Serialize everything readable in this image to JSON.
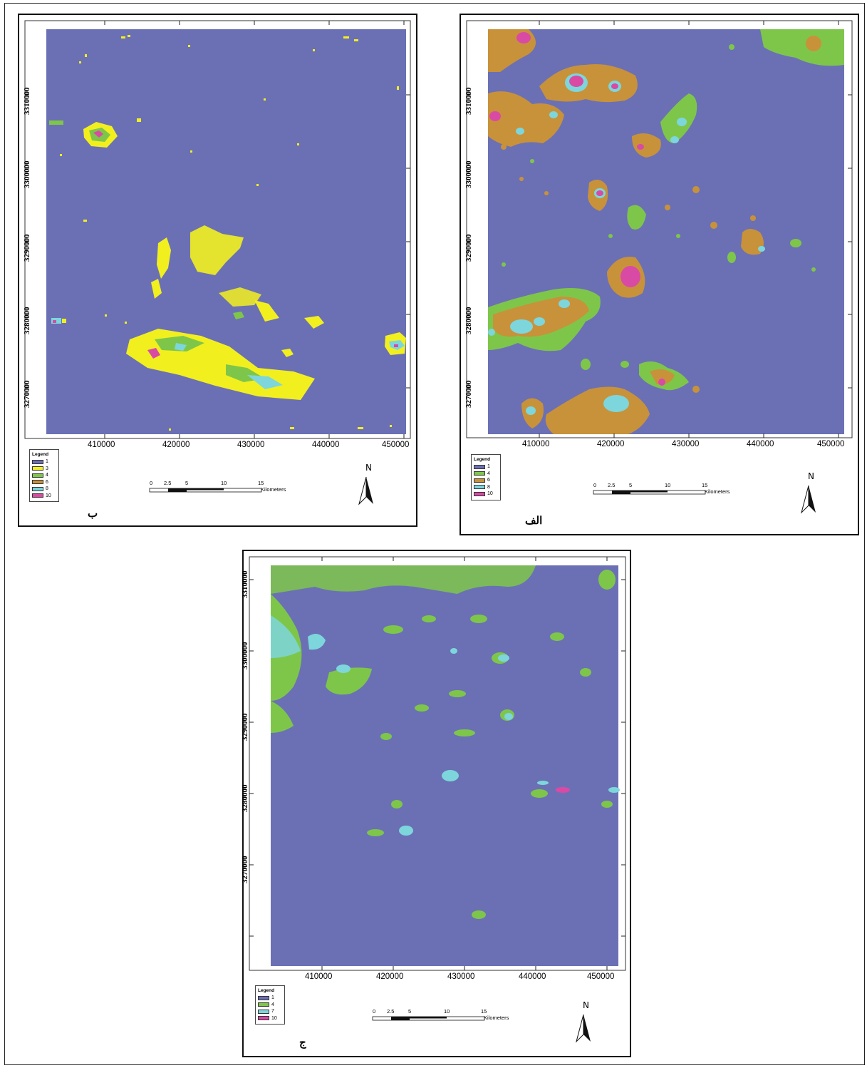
{
  "figure": {
    "panels": [
      {
        "id": "b",
        "label": "ب",
        "x_ticks": [
          "410000",
          "420000",
          "430000",
          "440000",
          "450000"
        ],
        "y_ticks": [
          "3310000",
          "3300000",
          "3290000",
          "3280000",
          "3270000"
        ],
        "legend": {
          "title": "Legend",
          "items": [
            {
              "label": "1",
              "color": "#6b70b5"
            },
            {
              "label": "3",
              "color": "#f2ef1f"
            },
            {
              "label": "4",
              "color": "#7ec64a"
            },
            {
              "label": "6",
              "color": "#c8923a"
            },
            {
              "label": "8",
              "color": "#7dd6dc"
            },
            {
              "label": "10",
              "color": "#d94aa5"
            }
          ]
        },
        "scale": {
          "ticks": [
            "0",
            "2.5",
            "5",
            "10",
            "15"
          ],
          "units": "Kilometers"
        },
        "north": "N"
      },
      {
        "id": "alef",
        "label": "الف",
        "x_ticks": [
          "410000",
          "420000",
          "430000",
          "440000",
          "450000"
        ],
        "y_ticks": [
          "3310000",
          "3300000",
          "3290000",
          "3280000",
          "3270000"
        ],
        "legend": {
          "title": "Legend",
          "items": [
            {
              "label": "1",
              "color": "#6b70b5"
            },
            {
              "label": "4",
              "color": "#7ec64a"
            },
            {
              "label": "6",
              "color": "#c8923a"
            },
            {
              "label": "8",
              "color": "#7dd6dc"
            },
            {
              "label": "10",
              "color": "#d94aa5"
            }
          ]
        },
        "scale": {
          "ticks": [
            "0",
            "2.5",
            "5",
            "10",
            "15"
          ],
          "units": "Kilometers"
        },
        "north": "N"
      },
      {
        "id": "jim",
        "label": "ج",
        "x_ticks": [
          "410000",
          "420000",
          "430000",
          "440000",
          "450000"
        ],
        "y_ticks": [
          "3310000",
          "3300000",
          "3290000",
          "3280000",
          "3270000"
        ],
        "legend": {
          "title": "Legend",
          "items": [
            {
              "label": "1",
              "color": "#6b70b5"
            },
            {
              "label": "4",
              "color": "#7ec64a"
            },
            {
              "label": "7",
              "color": "#7dd6dc"
            },
            {
              "label": "10",
              "color": "#d94aa5"
            }
          ]
        },
        "scale": {
          "ticks": [
            "0",
            "2.5",
            "5",
            "10",
            "15"
          ],
          "units": "Kilometers"
        },
        "north": "N"
      }
    ]
  }
}
